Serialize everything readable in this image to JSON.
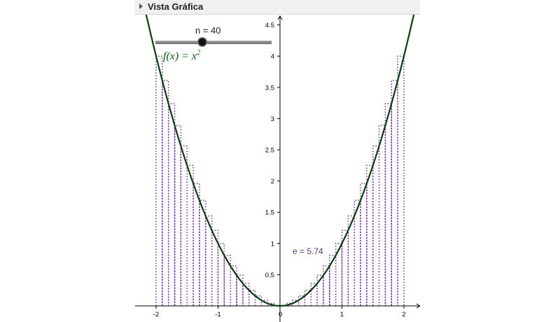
{
  "panel": {
    "title": "Vista Gráfica"
  },
  "slider": {
    "label": "n = 40",
    "name": "n",
    "value": 40
  },
  "function": {
    "lhs": "f(x)",
    "eq": "=",
    "base": "x",
    "exponent": "2",
    "color": "#0b3d0b"
  },
  "sum_label": "e = 5.74",
  "colors": {
    "bars": "#7a2aa8",
    "curve": "#0b3d0b",
    "sum_label": "#5a3a7a"
  },
  "chart_data": {
    "type": "line",
    "function": "x^2",
    "xlim": [
      -2,
      2
    ],
    "ylim": [
      0,
      4.5
    ],
    "x_ticks": [
      "-2",
      "-1",
      "0",
      "1",
      "2"
    ],
    "y_ticks": [
      "0.5",
      "1",
      "1.5",
      "2",
      "2.5",
      "3",
      "3.5",
      "4",
      "4.5"
    ],
    "grid": false,
    "rectangles": {
      "n": 40,
      "from": -2,
      "to": 2,
      "style": "dotted",
      "height_rule": "max of f on each subinterval"
    }
  }
}
